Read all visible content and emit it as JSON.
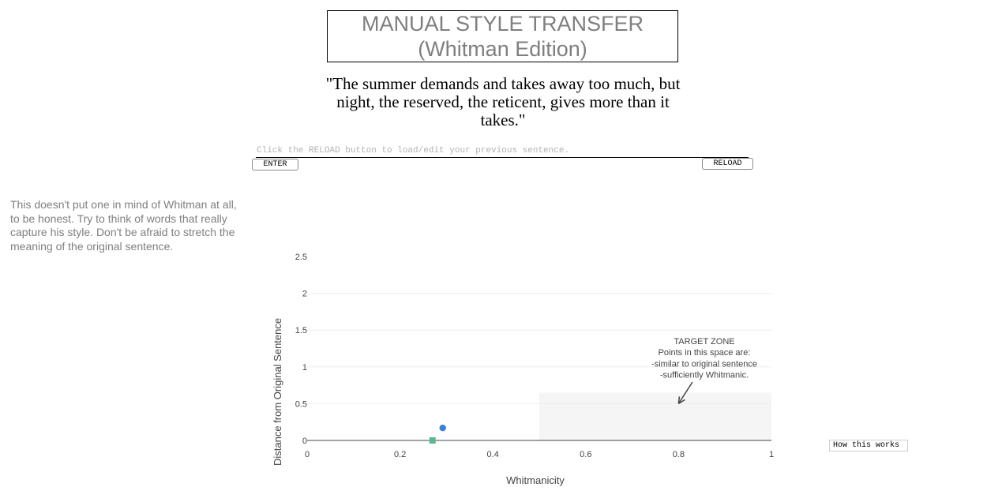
{
  "header": {
    "title_line1": "MANUAL STYLE TRANSFER",
    "title_line2": "(Whitman Edition)"
  },
  "quote": {
    "text": "\"The summer demands and takes away too much, but night, the reserved, the reticent, gives more than it takes.\""
  },
  "input": {
    "placeholder": "Click the RELOAD button to load/edit your previous sentence.",
    "value": ""
  },
  "buttons": {
    "enter_label": "ENTER",
    "reload_label": "RELOAD",
    "how_label": "How this works"
  },
  "feedback": {
    "text": "This doesn't put one in mind of Whitman at all, to be honest. Try to think of words that really capture his style. Don't be afraid to stretch the meaning of the original sentence."
  },
  "chart_data": {
    "type": "scatter",
    "xlabel": "Whitmanicity",
    "ylabel": "Distance from Original Sentence",
    "xlim": [
      0,
      1
    ],
    "ylim": [
      0,
      2.5
    ],
    "x_ticks": [
      "0",
      "0.2",
      "0.4",
      "0.6",
      "0.8",
      "1"
    ],
    "y_ticks": [
      "0",
      "0.5",
      "1",
      "1.5",
      "2",
      "2.5"
    ],
    "grid": true,
    "series": [
      {
        "marker": "square",
        "color": "#5cb98f",
        "points": [
          {
            "x": 0.27,
            "y": 0.0
          }
        ]
      },
      {
        "marker": "circle",
        "color": "#3a7fdc",
        "points": [
          {
            "x": 0.292,
            "y": 0.17
          }
        ]
      }
    ],
    "target_zone": {
      "x": [
        0.5,
        1.0
      ],
      "y": [
        0.0,
        0.65
      ],
      "color": "#f5f5f5"
    },
    "annotation": {
      "lines": [
        "TARGET ZONE",
        "Points in this space are:",
        "-similar to original sentence",
        "-sufficiently Whitmanic."
      ],
      "arrow_to": {
        "x": 0.8,
        "y": 0.5
      }
    }
  }
}
